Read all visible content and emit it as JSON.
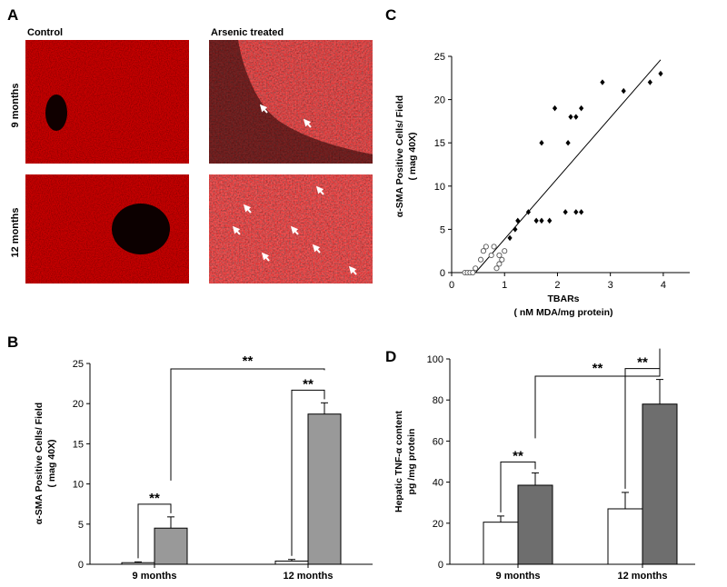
{
  "panels": {
    "A": "A",
    "B": "B",
    "C": "C",
    "D": "D"
  },
  "panel_a": {
    "col_control": "Control",
    "col_arsenic": "Arsenic  treated",
    "row_9": "9  months",
    "row_12": "12  months",
    "micrographs": [
      {
        "row": "9 months",
        "group": "Control",
        "arrows": 0
      },
      {
        "row": "9 months",
        "group": "Arsenic treated",
        "arrows": 2
      },
      {
        "row": "12 months",
        "group": "Control",
        "arrows": 0
      },
      {
        "row": "12 months",
        "group": "Arsenic treated",
        "arrows": 7
      }
    ],
    "tissue_color": "#b40f0f",
    "arrow_color": "#ffffff"
  },
  "chart_data": [
    {
      "panel": "B",
      "type": "bar",
      "ylabel_line1": "α-SMA Positive Cells/ Field",
      "ylabel_line2": "( mag 40X)",
      "categories": [
        "9 months",
        "12 months"
      ],
      "series": [
        {
          "values": [
            0.2,
            0.4
          ],
          "errors": [
            0.1,
            0.2
          ],
          "color": "#ffffff"
        },
        {
          "values": [
            4.5,
            18.7
          ],
          "errors": [
            1.4,
            1.4
          ],
          "color": "#999999"
        }
      ],
      "ylim": [
        0,
        25
      ],
      "yticks": [
        "0",
        "5",
        "10",
        "15",
        "20",
        "25"
      ],
      "significance": [
        "**",
        "**",
        "**"
      ]
    },
    {
      "panel": "C",
      "type": "scatter",
      "xlabel_line1": "TBARs",
      "xlabel_line2": "( nM MDA/mg protein)",
      "ylabel_line1": "α-SMA Positive Cells/ Field",
      "ylabel_line2": "( mag 40X)",
      "xlim": [
        0,
        4.5
      ],
      "ylim": [
        0,
        25
      ],
      "xticks": [
        "0",
        "1",
        "2",
        "3",
        "4"
      ],
      "yticks": [
        "0",
        "5",
        "10",
        "15",
        "20",
        "25"
      ],
      "series": [
        {
          "marker": "open-circle",
          "points": [
            [
              0.25,
              0
            ],
            [
              0.3,
              0
            ],
            [
              0.35,
              0
            ],
            [
              0.4,
              0
            ],
            [
              0.45,
              0.5
            ],
            [
              0.55,
              1.5
            ],
            [
              0.6,
              2.5
            ],
            [
              0.65,
              3
            ],
            [
              0.75,
              2
            ],
            [
              0.8,
              3
            ],
            [
              0.85,
              0.5
            ],
            [
              0.9,
              1
            ],
            [
              0.9,
              2
            ],
            [
              0.95,
              1.5
            ],
            [
              1.0,
              2.5
            ]
          ]
        },
        {
          "marker": "filled-diamond",
          "points": [
            [
              1.1,
              4
            ],
            [
              1.2,
              5
            ],
            [
              1.25,
              6
            ],
            [
              1.45,
              7
            ],
            [
              1.6,
              6
            ],
            [
              1.7,
              6
            ],
            [
              1.7,
              15
            ],
            [
              1.85,
              6
            ],
            [
              1.95,
              19
            ],
            [
              2.15,
              7
            ],
            [
              2.2,
              15
            ],
            [
              2.25,
              18
            ],
            [
              2.35,
              18
            ],
            [
              2.35,
              7
            ],
            [
              2.45,
              7
            ],
            [
              2.45,
              19
            ],
            [
              2.85,
              22
            ],
            [
              3.25,
              21
            ],
            [
              3.75,
              22
            ],
            [
              3.95,
              23
            ]
          ]
        }
      ],
      "fit_line": [
        [
          0.45,
          0
        ],
        [
          3.95,
          24.6
        ]
      ]
    },
    {
      "panel": "D",
      "type": "bar",
      "ylabel_line1": "Hepatic TNF-α  content",
      "ylabel_line2": "pg /mg protein",
      "categories": [
        "9 months",
        "12 months"
      ],
      "series": [
        {
          "values": [
            20.5,
            27
          ],
          "errors": [
            3,
            8
          ],
          "color": "#ffffff"
        },
        {
          "values": [
            38.5,
            78
          ],
          "errors": [
            6,
            12
          ],
          "color": "#6e6e6e"
        }
      ],
      "ylim": [
        0,
        100
      ],
      "yticks": [
        "0",
        "20",
        "40",
        "60",
        "80",
        "100"
      ],
      "significance": [
        "**",
        "**",
        "**"
      ]
    }
  ]
}
